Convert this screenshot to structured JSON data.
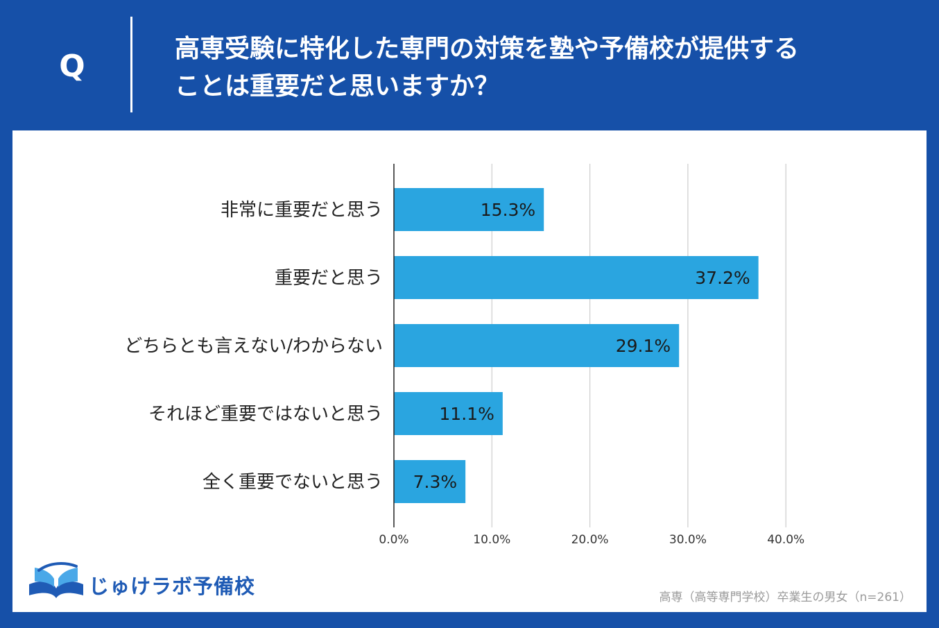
{
  "header": {
    "q_label": "Q",
    "question_line1": "高専受験に特化した専門の対策を塾や予備校が提供する",
    "question_line2": "ことは重要だと思いますか？"
  },
  "chart_data": {
    "type": "bar",
    "orientation": "horizontal",
    "categories": [
      "非常に重要だと思う",
      "重要だと思う",
      "どちらとも言えない/わからない",
      "それほど重要ではないと思う",
      "全く重要でないと思う"
    ],
    "values": [
      15.3,
      37.2,
      29.1,
      11.1,
      7.3
    ],
    "value_labels": [
      "15.3%",
      "37.2%",
      "29.1%",
      "11.1%",
      "7.3%"
    ],
    "xlim": [
      0,
      40
    ],
    "x_ticks": [
      0,
      10,
      20,
      30,
      40
    ],
    "x_tick_labels": [
      "0.0%",
      "10.0%",
      "20.0%",
      "30.0%",
      "40.0%"
    ],
    "grid": true,
    "bar_color": "#2aa5e0"
  },
  "logo": {
    "text": "じゅけラボ予備校",
    "icon": "open-book-icon"
  },
  "footnote": "高専（高等専門学校）卒業生の男女（n=261）",
  "colors": {
    "background": "#1650a8",
    "panel": "#ffffff",
    "logo": "#1f5bb5"
  }
}
